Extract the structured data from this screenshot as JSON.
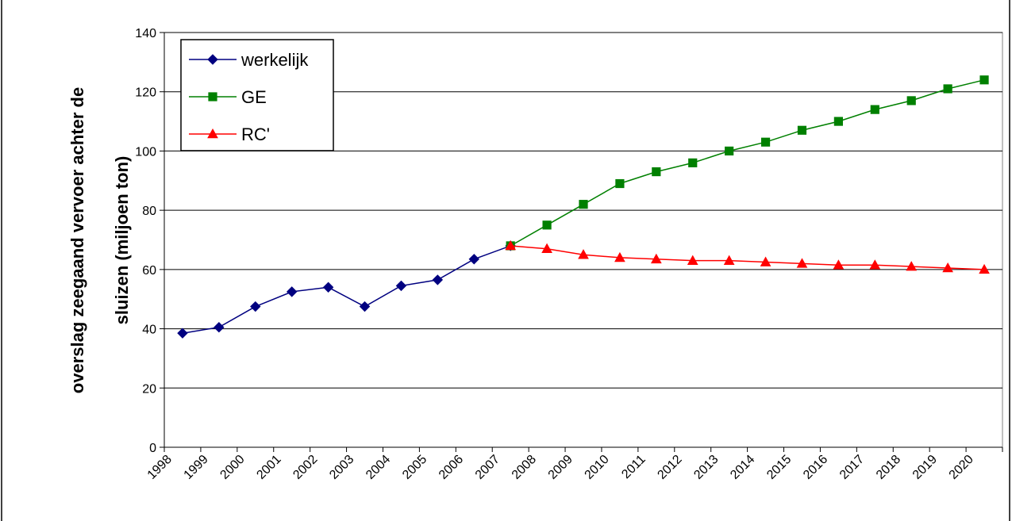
{
  "chart_data": {
    "type": "line",
    "title": "",
    "ylabel": "overslag zeegaand vervoer achter de sluizen (miljoen ton)",
    "ylabel_lines": [
      "overslag zeegaand vervoer achter de",
      "sluizen (miljoen ton)"
    ],
    "xlabel": "",
    "ylim": [
      0,
      140
    ],
    "yticks": [
      0,
      20,
      40,
      60,
      80,
      100,
      120,
      140
    ],
    "grid": true,
    "legend_position": "top-left",
    "categories": [
      "1998",
      "1999",
      "2000",
      "2001",
      "2002",
      "2003",
      "2004",
      "2005",
      "2006",
      "2007",
      "2008",
      "2009",
      "2010",
      "2011",
      "2012",
      "2013",
      "2014",
      "2015",
      "2016",
      "2017",
      "2018",
      "2019",
      "2020"
    ],
    "series": [
      {
        "name": "werkelijk",
        "color": "#000080",
        "marker": "diamond",
        "values": [
          38.5,
          40.5,
          47.5,
          52.5,
          54,
          47.5,
          54.5,
          56.5,
          63.5,
          68,
          null,
          null,
          null,
          null,
          null,
          null,
          null,
          null,
          null,
          null,
          null,
          null,
          null
        ]
      },
      {
        "name": "GE",
        "color": "#008000",
        "marker": "square",
        "values": [
          null,
          null,
          null,
          null,
          null,
          null,
          null,
          null,
          null,
          68,
          75,
          82,
          89,
          93,
          96,
          100,
          103,
          107,
          110,
          114,
          117,
          121,
          124
        ]
      },
      {
        "name": "RC'",
        "color": "#ff0000",
        "marker": "triangle",
        "values": [
          null,
          null,
          null,
          null,
          null,
          null,
          null,
          null,
          null,
          68,
          67,
          65,
          64,
          63.5,
          63,
          63,
          62.5,
          62,
          61.5,
          61.5,
          61,
          60.5,
          60
        ]
      }
    ]
  }
}
